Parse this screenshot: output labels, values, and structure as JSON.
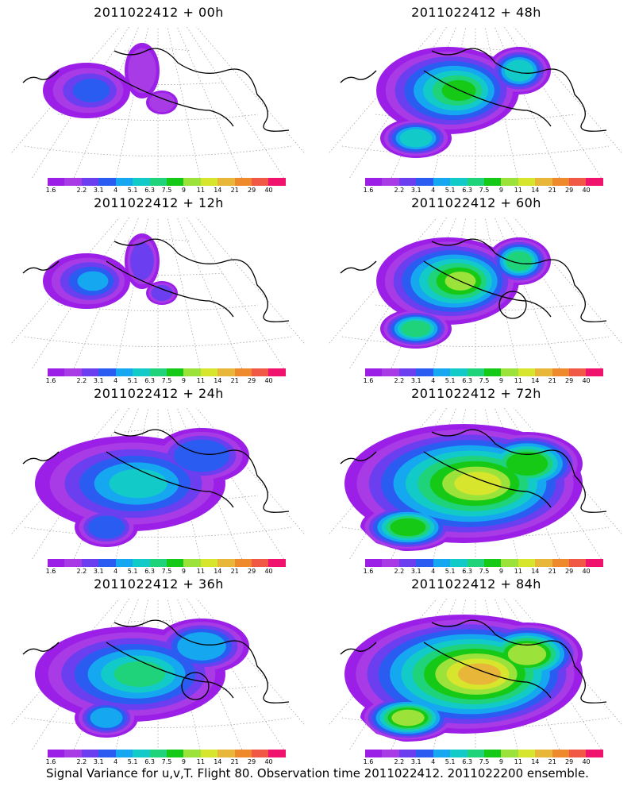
{
  "figure": {
    "caption": "Signal Variance for u,v,T. Flight 80. Observation time 2011022412. 2011022200 ensemble."
  },
  "legend": {
    "levels": [
      "1.6",
      "2.2",
      "3.1",
      "4",
      "5.1",
      "6.3",
      "7.5",
      "9",
      "11",
      "14",
      "21",
      "29",
      "40"
    ],
    "colors": [
      "#9b1fe6",
      "#a93be6",
      "#6b3ff0",
      "#2a5cf2",
      "#15a8f0",
      "#12cbc8",
      "#1fd37a",
      "#16c916",
      "#9be33a",
      "#d7e62d",
      "#e8b73a",
      "#ef8a2c",
      "#f25846",
      "#f0136e"
    ]
  },
  "panels": [
    {
      "title": "2011022412 + 00h",
      "lead_hours": 0,
      "intensity": 1,
      "circle": false
    },
    {
      "title": "2011022412 + 48h",
      "lead_hours": 48,
      "intensity": 5,
      "circle": false
    },
    {
      "title": "2011022412 + 12h",
      "lead_hours": 12,
      "intensity": 2,
      "circle": false
    },
    {
      "title": "2011022412 + 60h",
      "lead_hours": 60,
      "intensity": 6,
      "circle": true
    },
    {
      "title": "2011022412 + 24h",
      "lead_hours": 24,
      "intensity": 3,
      "circle": false
    },
    {
      "title": "2011022412 + 72h",
      "lead_hours": 72,
      "intensity": 7,
      "circle": false
    },
    {
      "title": "2011022412 + 36h",
      "lead_hours": 36,
      "intensity": 4,
      "circle": true
    },
    {
      "title": "2011022412 + 84h",
      "lead_hours": 84,
      "intensity": 8,
      "circle": false
    }
  ]
}
